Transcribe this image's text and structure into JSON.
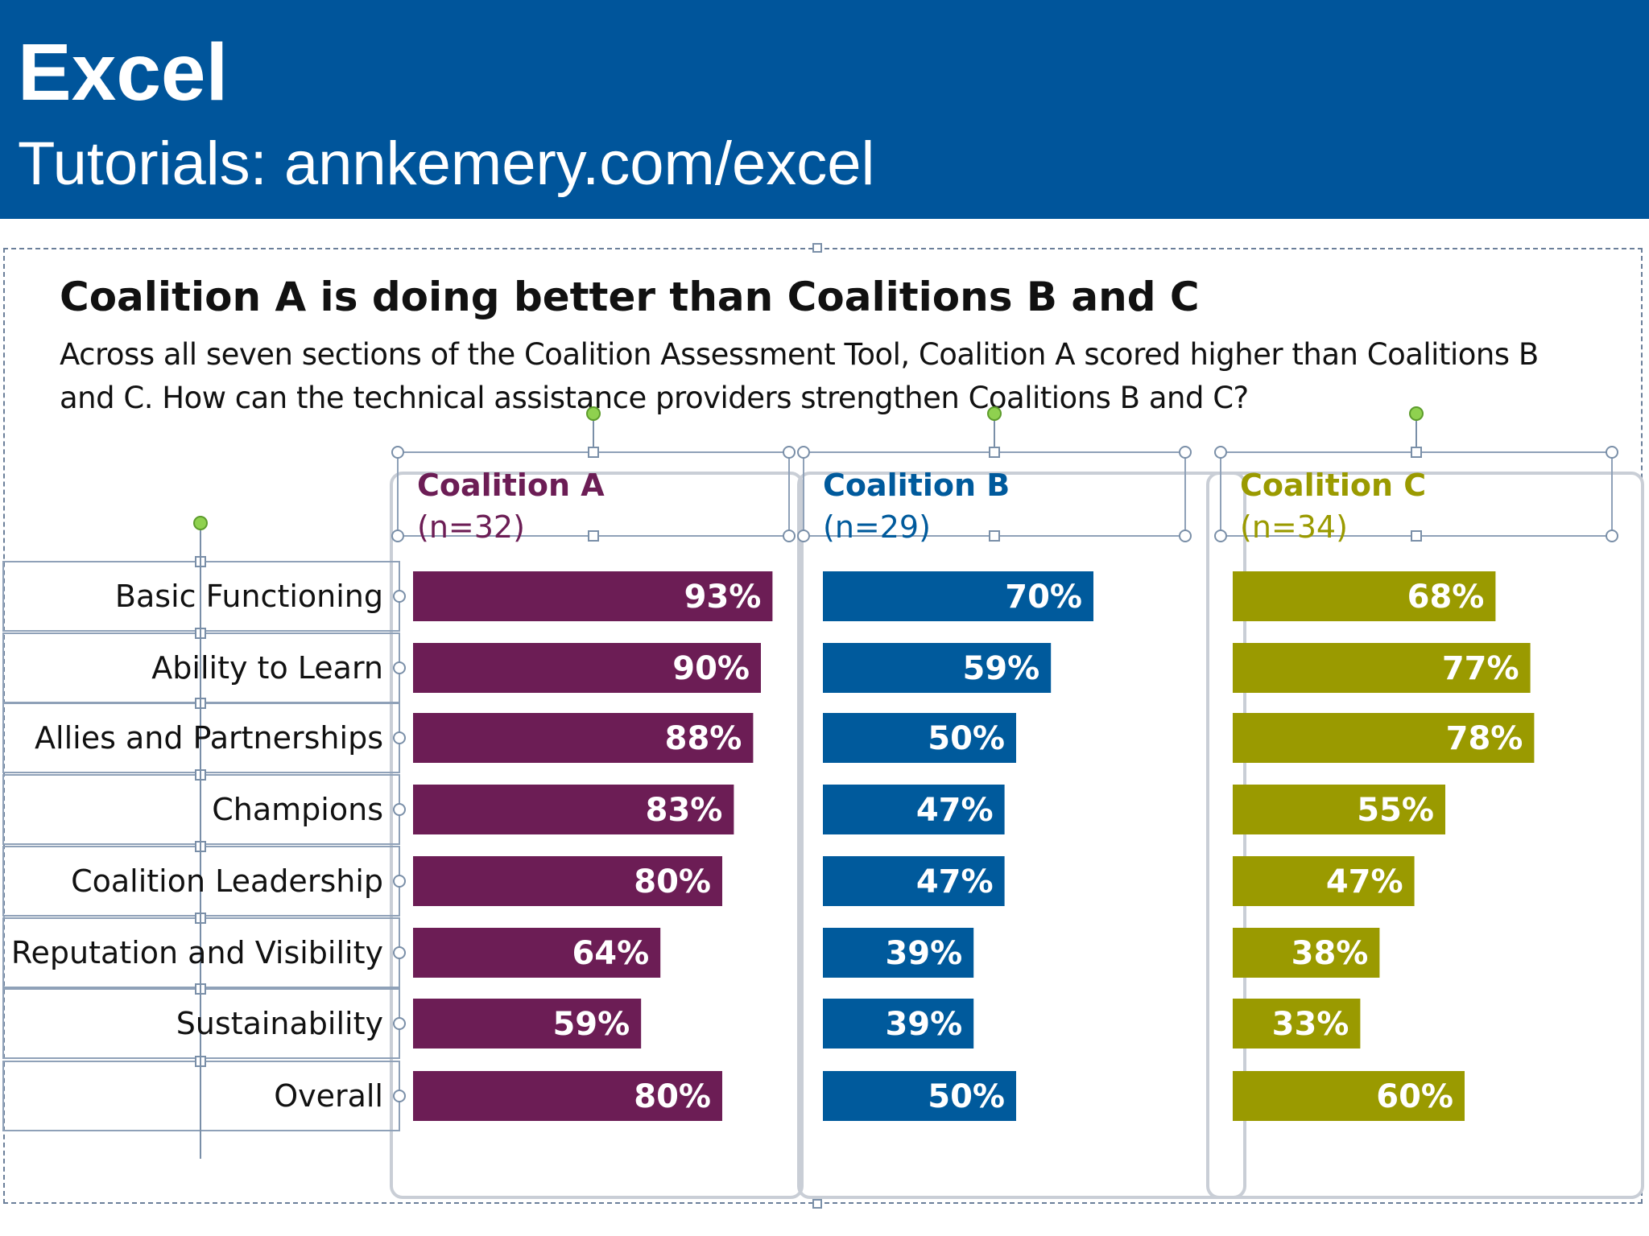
{
  "banner": {
    "title": "Excel",
    "subtitle": "Tutorials: annkemery.com/excel"
  },
  "colors": {
    "banner": "#00559b",
    "coalition_a": "#6c1d55",
    "coalition_b": "#005a9c",
    "coalition_c": "#9a9a00"
  },
  "chart_data": {
    "type": "bar",
    "orientation": "horizontal",
    "title": "Coalition A is doing better than Coalitions B and C",
    "subtitle": "Across all seven sections of the Coalition Assessment Tool, Coalition A scored higher than Coalitions B and C. How can the technical assistance providers strengthen Coalitions B and C?",
    "categories": [
      "Basic Functioning",
      "Ability to Learn",
      "Allies and Partnerships",
      "Champions",
      "Coalition Leadership",
      "Reputation and Visibility",
      "Sustainability",
      "Overall"
    ],
    "xlim": [
      0,
      100
    ],
    "value_format": "percent",
    "series": [
      {
        "name": "Coalition A",
        "n": "(n=32)",
        "color": "#6c1d55",
        "values": [
          93,
          90,
          88,
          83,
          80,
          64,
          59,
          80
        ]
      },
      {
        "name": "Coalition B",
        "n": "(n=29)",
        "color": "#005a9c",
        "values": [
          70,
          59,
          50,
          47,
          47,
          39,
          39,
          50
        ]
      },
      {
        "name": "Coalition C",
        "n": "(n=34)",
        "color": "#9a9a00",
        "values": [
          68,
          77,
          78,
          55,
          47,
          38,
          33,
          60
        ]
      }
    ]
  }
}
